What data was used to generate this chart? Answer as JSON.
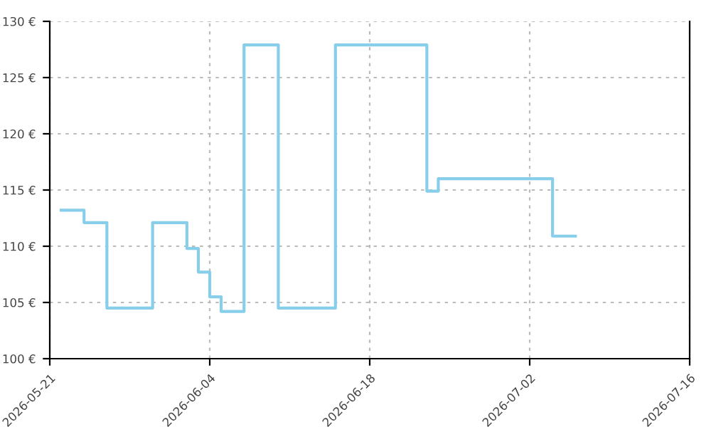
{
  "chart_data": {
    "type": "step",
    "x": [
      "2026-05-22",
      "2026-05-24",
      "2026-05-26",
      "2026-05-30",
      "2026-06-02",
      "2026-06-03",
      "2026-06-04",
      "2026-06-05",
      "2026-06-07",
      "2026-06-10",
      "2026-06-15",
      "2026-06-23",
      "2026-06-24",
      "2026-07-04",
      "2026-07-06"
    ],
    "series": [
      {
        "color": "#87ceeb",
        "values": [
          113.2,
          112.1,
          104.5,
          112.1,
          109.8,
          107.7,
          105.5,
          104.2,
          127.9,
          104.5,
          127.9,
          114.9,
          116.0,
          110.9,
          110.9
        ]
      }
    ],
    "xlim": [
      "2026-05-21",
      "2026-07-16"
    ],
    "xticks": [
      "2026-05-21",
      "2026-06-04",
      "2026-06-18",
      "2026-07-02",
      "2026-07-16"
    ],
    "ylim": [
      100,
      130
    ],
    "yticks": [
      {
        "value": 100,
        "label": "100 €"
      },
      {
        "value": 105,
        "label": "105 €"
      },
      {
        "value": 110,
        "label": "110 €"
      },
      {
        "value": 115,
        "label": "115 €"
      },
      {
        "value": 120,
        "label": "120 €"
      },
      {
        "value": 125,
        "label": "125 €"
      },
      {
        "value": 130,
        "label": "130 €"
      }
    ],
    "grid": true
  }
}
